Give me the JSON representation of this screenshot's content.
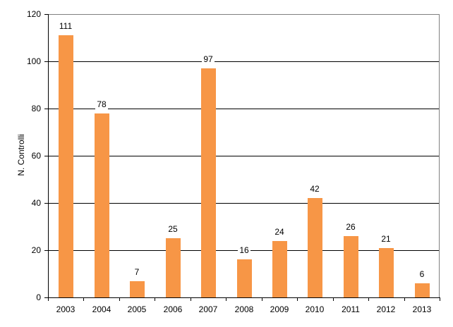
{
  "chart_data": {
    "type": "bar",
    "title": "",
    "xlabel": "",
    "ylabel": "N. Controlli",
    "categories": [
      "2003",
      "2004",
      "2005",
      "2006",
      "2007",
      "2008",
      "2009",
      "2010",
      "2011",
      "2012",
      "2013"
    ],
    "values": [
      111,
      78,
      7,
      25,
      97,
      16,
      24,
      42,
      26,
      21,
      6
    ],
    "ylim": [
      0,
      120
    ],
    "yticks": [
      0,
      20,
      40,
      60,
      80,
      100,
      120
    ],
    "grid": true,
    "legend": "none",
    "data_labels": true,
    "bar_color": "#F79646"
  }
}
